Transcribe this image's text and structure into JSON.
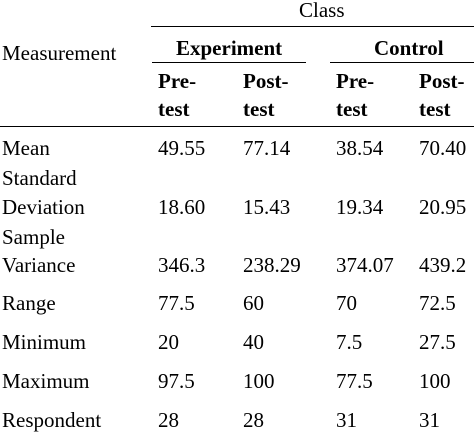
{
  "table": {
    "header": {
      "measurement_label": "Measurement",
      "class_label": "Class",
      "groups": [
        {
          "label": "Experiment"
        },
        {
          "label": "Control"
        }
      ],
      "subheaders": [
        {
          "line1": "Pre-",
          "line2": "test"
        },
        {
          "line1": "Post-",
          "line2": "test"
        },
        {
          "line1": "Pre-",
          "line2": "test"
        },
        {
          "line1": "Post-",
          "line2": "test"
        }
      ]
    },
    "rows": [
      {
        "label_line1": "Mean",
        "label_line2": "",
        "values": [
          "49.55",
          "77.14",
          "38.54",
          "70.40"
        ]
      },
      {
        "label_line1": "Standard",
        "label_line2": "Deviation",
        "values": [
          "18.60",
          "15.43",
          "19.34",
          "20.95"
        ]
      },
      {
        "label_line1": "Sample",
        "label_line2": "Variance",
        "values": [
          "346.3",
          "238.29",
          "374.07",
          "439.2"
        ]
      },
      {
        "label_line1": "Range",
        "label_line2": "",
        "values": [
          "77.5",
          "60",
          "70",
          "72.5"
        ]
      },
      {
        "label_line1": "Minimum",
        "label_line2": "",
        "values": [
          "20",
          "40",
          "7.5",
          "27.5"
        ]
      },
      {
        "label_line1": "Maximum",
        "label_line2": "",
        "values": [
          "97.5",
          "100",
          "77.5",
          "100"
        ]
      },
      {
        "label_line1": "Respondent",
        "label_line2": "",
        "values": [
          "28",
          "28",
          "31",
          "31"
        ]
      }
    ]
  }
}
